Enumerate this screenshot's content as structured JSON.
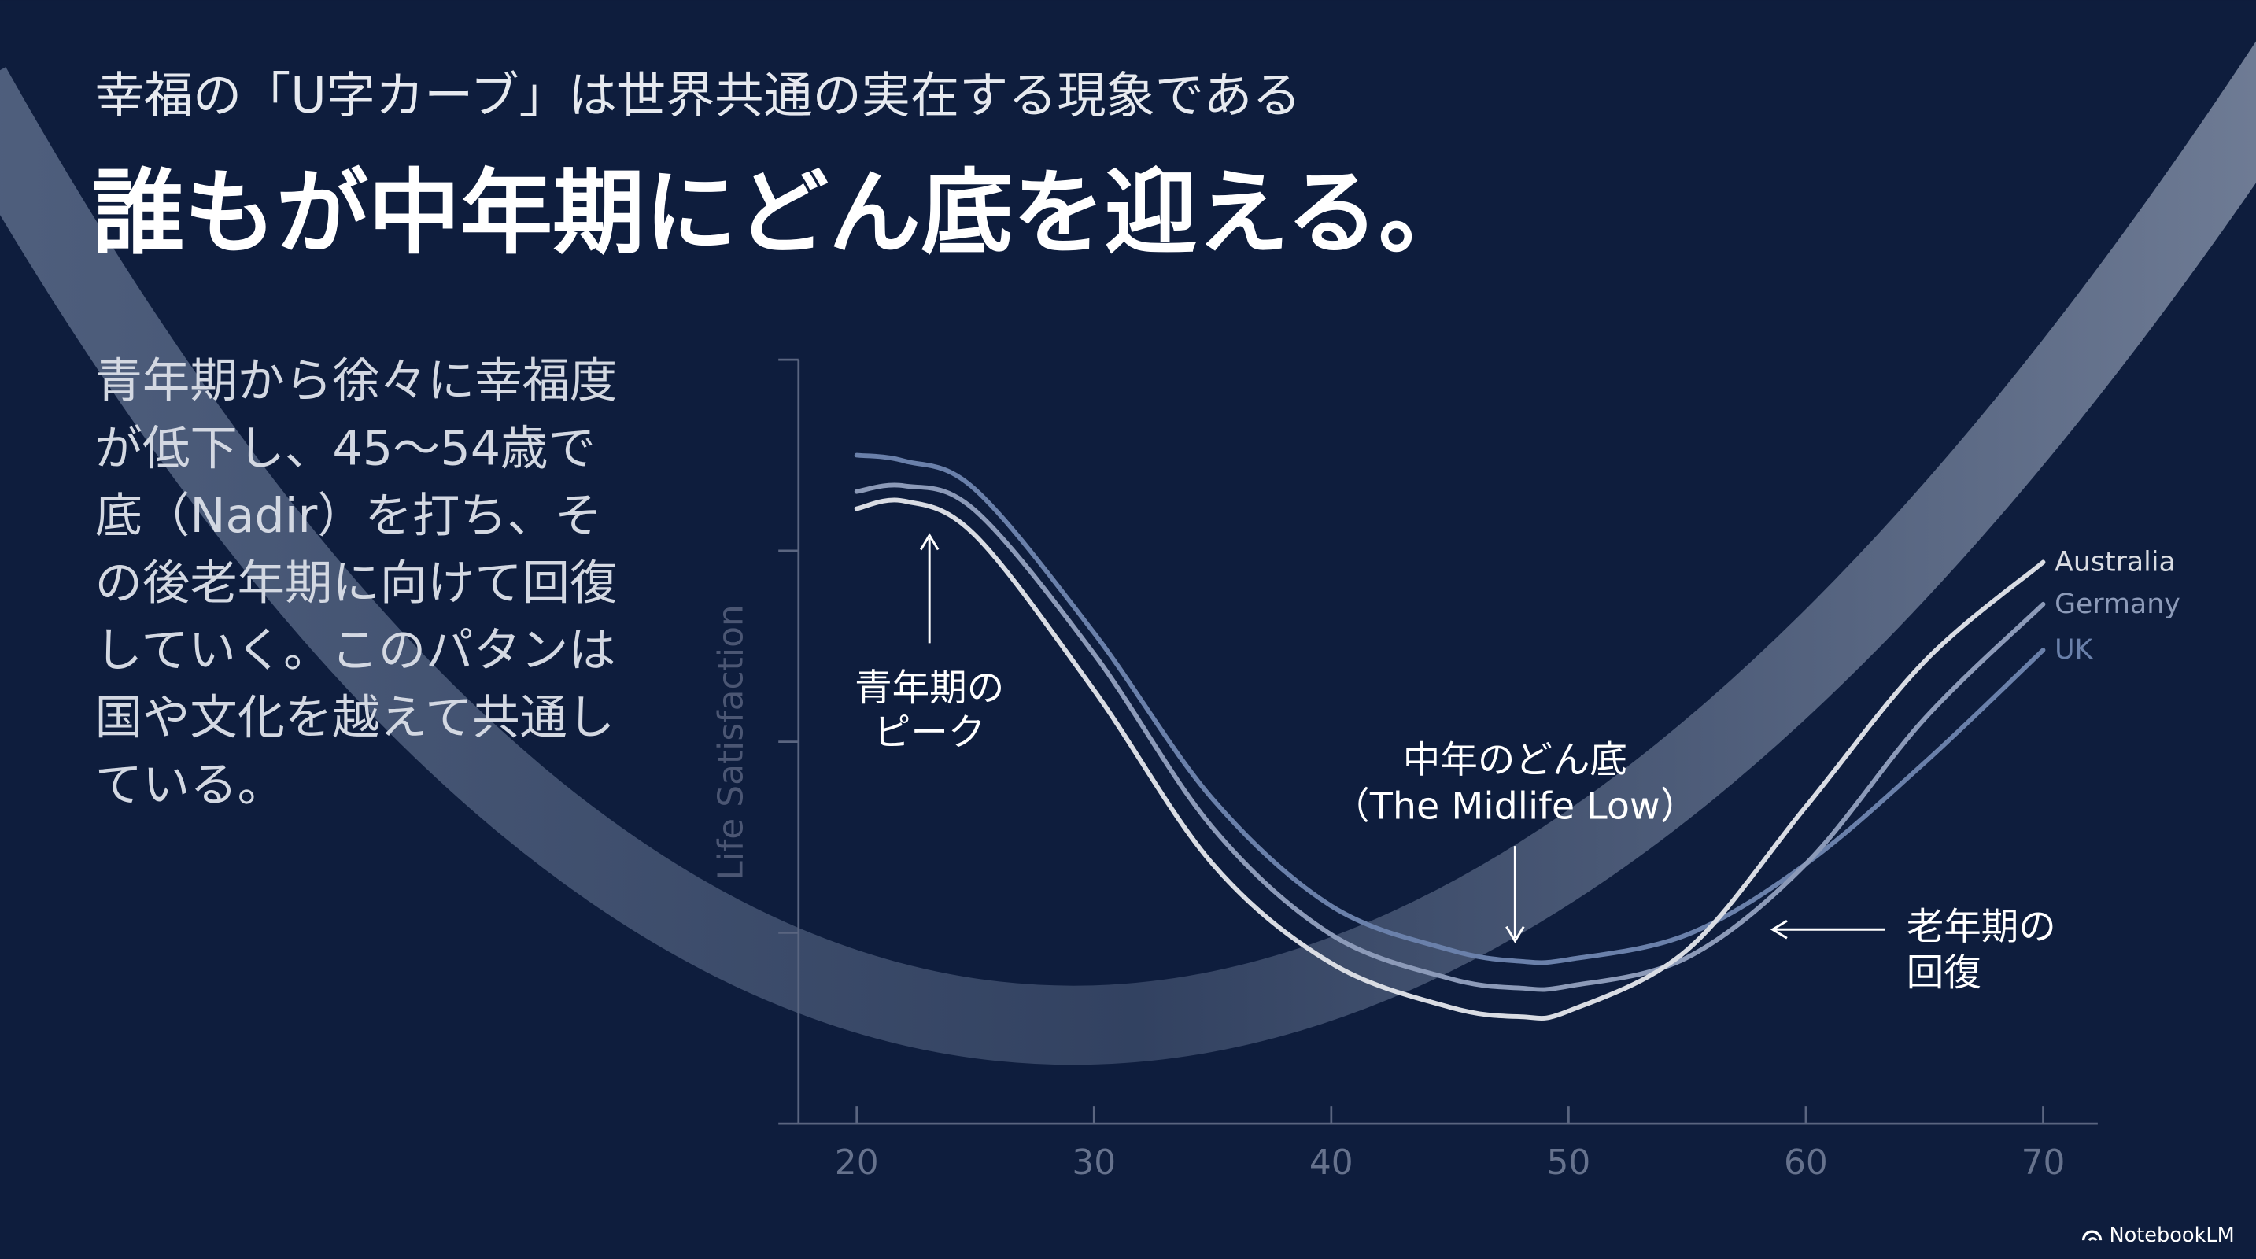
{
  "slide": {
    "subtitle": "幸福の「U字カーブ」は世界共通の実在する現象である",
    "title": "誰もが中年期にどん底を迎える。",
    "body": [
      "青年期から徐々に幸福度",
      "が低下し、45〜54歳で",
      "底（Nadir）を打ち、そ",
      "の後老年期に向けて回復",
      "していく。このパタンは",
      "国や文化を越えて共通し",
      "ている。"
    ],
    "footer": "NotebookLM"
  },
  "chart_data": {
    "type": "line",
    "y_label": "Life Satisfaction",
    "x": [
      20,
      22,
      25,
      30,
      35,
      40,
      45,
      48,
      50,
      55,
      60,
      65,
      70
    ],
    "xlim": [
      16.7,
      72.3
    ],
    "xticks": [
      20,
      30,
      40,
      50,
      60,
      70
    ],
    "ylim": [
      0,
      4
    ],
    "yticks": [
      1,
      2,
      3
    ],
    "series": [
      {
        "name": "Australia",
        "color": "#d9dce3",
        "values": [
          3.22,
          3.26,
          3.08,
          2.27,
          1.36,
          0.84,
          0.61,
          0.56,
          0.59,
          0.91,
          1.66,
          2.42,
          2.94
        ]
      },
      {
        "name": "Germany",
        "color": "#8c9ab8",
        "values": [
          3.31,
          3.34,
          3.21,
          2.46,
          1.55,
          0.99,
          0.76,
          0.71,
          0.72,
          0.87,
          1.36,
          2.12,
          2.72
        ]
      },
      {
        "name": "UK",
        "color": "#6a80aa",
        "values": [
          3.5,
          3.47,
          3.32,
          2.57,
          1.7,
          1.14,
          0.91,
          0.85,
          0.86,
          0.99,
          1.36,
          1.89,
          2.48
        ]
      }
    ],
    "annotations": [
      [
        "青年期の",
        "ピーク"
      ],
      [
        "中年のどん底",
        "（The Midlife Low）"
      ],
      [
        "老年期の",
        "回復"
      ]
    ]
  }
}
